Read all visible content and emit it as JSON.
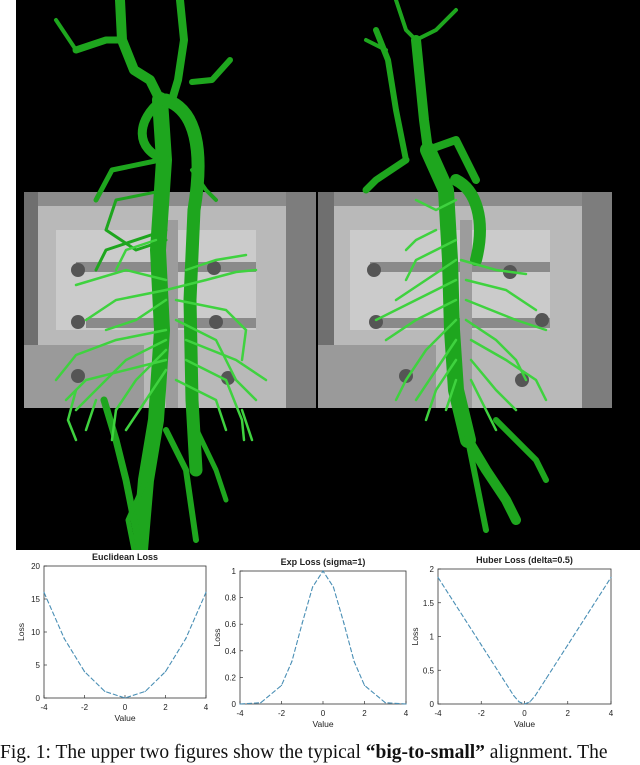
{
  "caption": {
    "prefix": "Fig. 1: The upper two figures show the typical ",
    "bold": "“big-to-small”",
    "suffix": " alignment. The"
  },
  "colors": {
    "vessel": "#1ea61e",
    "vessel_bright": "#3fd23f",
    "background": "#000000",
    "xray": "#b4b4b4",
    "curve": "#4a8fb5"
  },
  "chart_data": [
    {
      "type": "line",
      "title": "Euclidean Loss",
      "xlabel": "Value",
      "ylabel": "Loss",
      "xlim": [
        -4,
        4
      ],
      "ylim": [
        0,
        20
      ],
      "xticks": [
        -4,
        -2,
        0,
        2,
        4
      ],
      "yticks": [
        0,
        5,
        10,
        15,
        20
      ],
      "x": [
        -4,
        -3,
        -2,
        -1,
        0,
        1,
        2,
        3,
        4
      ],
      "y": [
        16,
        9,
        4,
        1,
        0,
        1,
        4,
        9,
        16
      ]
    },
    {
      "type": "line",
      "title": "Exp Loss (sigma=1)",
      "xlabel": "Value",
      "ylabel": "Loss",
      "xlim": [
        -4,
        4
      ],
      "ylim": [
        0,
        1
      ],
      "xticks": [
        -4,
        -2,
        0,
        2,
        4
      ],
      "yticks": [
        0,
        0.2,
        0.4,
        0.6,
        0.8,
        1
      ],
      "x": [
        -4,
        -3,
        -2,
        -1.5,
        -1,
        -0.5,
        0,
        0.5,
        1,
        1.5,
        2,
        3,
        4
      ],
      "y": [
        0,
        0.01,
        0.14,
        0.32,
        0.61,
        0.88,
        1,
        0.88,
        0.61,
        0.32,
        0.14,
        0.01,
        0
      ]
    },
    {
      "type": "line",
      "title": "Huber Loss (delta=0.5)",
      "xlabel": "Value",
      "ylabel": "Loss",
      "xlim": [
        -4,
        4
      ],
      "ylim": [
        0,
        2
      ],
      "xticks": [
        -4,
        -2,
        0,
        2,
        4
      ],
      "yticks": [
        0,
        0.5,
        1,
        1.5,
        2
      ],
      "x": [
        -4,
        -2,
        -1,
        -0.5,
        -0.25,
        0,
        0.25,
        0.5,
        1,
        2,
        4
      ],
      "y": [
        1.875,
        0.875,
        0.375,
        0.125,
        0.031,
        0,
        0.031,
        0.125,
        0.375,
        0.875,
        1.875
      ]
    }
  ]
}
